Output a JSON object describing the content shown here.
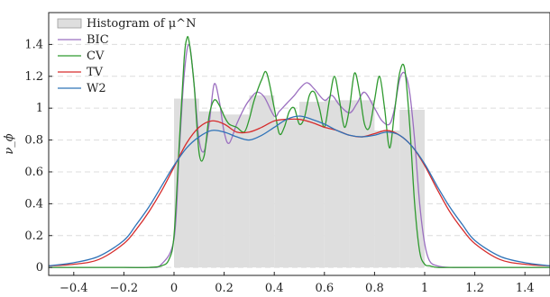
{
  "chart_data": {
    "type": "line",
    "xlabel": "",
    "ylabel": "ν_ϕ",
    "xlim": [
      -0.5,
      1.5
    ],
    "ylim": [
      -0.05,
      1.6
    ],
    "xticks": [
      -0.4,
      -0.2,
      0,
      0.2,
      0.4,
      0.6,
      0.8,
      1,
      1.2,
      1.4
    ],
    "xtick_labels": [
      "−0.4",
      "−0.2",
      "0",
      "0.2",
      "0.4",
      "0.6",
      "0.8",
      "1",
      "1.2",
      "1.4"
    ],
    "yticks": [
      0,
      0.2,
      0.4,
      0.6,
      0.8,
      1,
      1.2,
      1.4
    ],
    "ytick_labels": [
      "0",
      "0.2",
      "0.4",
      "0.6",
      "0.8",
      "1",
      "1.2",
      "1.4"
    ],
    "grid": "horizontal dashed",
    "legend_position": "top-left",
    "histogram": {
      "name": "Histogram of μ^N",
      "color": "#dedede",
      "bins": [
        {
          "x0": 0.0,
          "x1": 0.1,
          "value": 1.06
        },
        {
          "x0": 0.1,
          "x1": 0.2,
          "value": 0.98
        },
        {
          "x0": 0.2,
          "x1": 0.3,
          "value": 0.96
        },
        {
          "x0": 0.3,
          "x1": 0.4,
          "value": 1.08
        },
        {
          "x0": 0.4,
          "x1": 0.5,
          "value": 0.93
        },
        {
          "x0": 0.5,
          "x1": 0.6,
          "value": 1.04
        },
        {
          "x0": 0.6,
          "x1": 0.7,
          "value": 1.05
        },
        {
          "x0": 0.7,
          "x1": 0.8,
          "value": 1.05
        },
        {
          "x0": 0.8,
          "x1": 0.9,
          "value": 0.86
        },
        {
          "x0": 0.9,
          "x1": 1.0,
          "value": 0.99
        }
      ]
    },
    "series": [
      {
        "name": "BIC",
        "color": "#9b6fc0",
        "x": [
          -0.5,
          -0.3,
          -0.2,
          -0.1,
          -0.05,
          0.0,
          0.02,
          0.04,
          0.06,
          0.08,
          0.1,
          0.12,
          0.14,
          0.16,
          0.18,
          0.2,
          0.22,
          0.25,
          0.28,
          0.3,
          0.33,
          0.36,
          0.4,
          0.42,
          0.45,
          0.48,
          0.5,
          0.53,
          0.56,
          0.6,
          0.63,
          0.66,
          0.7,
          0.73,
          0.76,
          0.8,
          0.83,
          0.86,
          0.88,
          0.9,
          0.92,
          0.94,
          0.96,
          0.98,
          1.0,
          1.02,
          1.05,
          1.1,
          1.2,
          1.3,
          1.5
        ],
        "y": [
          0.0,
          0.0,
          0.0,
          0.0,
          0.02,
          0.18,
          0.7,
          1.2,
          1.4,
          1.15,
          0.8,
          0.73,
          0.9,
          1.15,
          1.05,
          0.85,
          0.78,
          0.9,
          1.0,
          1.05,
          1.1,
          1.07,
          0.95,
          0.98,
          1.03,
          1.08,
          1.12,
          1.16,
          1.12,
          1.05,
          1.08,
          1.02,
          0.97,
          1.03,
          1.1,
          1.0,
          0.92,
          0.9,
          1.0,
          1.18,
          1.22,
          1.1,
          0.8,
          0.4,
          0.15,
          0.04,
          0.01,
          0.0,
          0.0,
          0.0,
          0.0
        ]
      },
      {
        "name": "CV",
        "color": "#2f9a2f",
        "x": [
          -0.5,
          -0.3,
          -0.2,
          -0.1,
          -0.05,
          -0.02,
          0.0,
          0.02,
          0.04,
          0.05,
          0.06,
          0.08,
          0.1,
          0.12,
          0.14,
          0.16,
          0.18,
          0.2,
          0.22,
          0.25,
          0.28,
          0.3,
          0.32,
          0.35,
          0.37,
          0.4,
          0.42,
          0.44,
          0.46,
          0.48,
          0.5,
          0.52,
          0.54,
          0.56,
          0.58,
          0.6,
          0.62,
          0.64,
          0.66,
          0.68,
          0.7,
          0.72,
          0.74,
          0.76,
          0.78,
          0.8,
          0.82,
          0.84,
          0.86,
          0.88,
          0.9,
          0.92,
          0.94,
          0.96,
          0.98,
          1.0,
          1.02,
          1.05,
          1.1,
          1.2,
          1.3,
          1.5
        ],
        "y": [
          0.0,
          0.0,
          0.0,
          0.0,
          0.01,
          0.05,
          0.2,
          0.75,
          1.3,
          1.43,
          1.42,
          1.15,
          0.72,
          0.7,
          0.95,
          1.05,
          1.02,
          0.95,
          0.9,
          0.88,
          0.85,
          0.93,
          1.05,
          1.18,
          1.22,
          1.0,
          0.84,
          0.88,
          0.98,
          1.0,
          0.9,
          0.94,
          1.08,
          1.1,
          1.0,
          0.88,
          1.05,
          1.2,
          1.05,
          0.88,
          1.0,
          1.22,
          1.1,
          0.9,
          0.88,
          1.05,
          1.2,
          1.0,
          0.75,
          0.98,
          1.22,
          1.25,
          0.9,
          0.4,
          0.1,
          0.02,
          0.01,
          0.0,
          0.0,
          0.0,
          0.0,
          0.0
        ]
      },
      {
        "name": "TV",
        "color": "#d62c2c",
        "x": [
          -0.5,
          -0.4,
          -0.3,
          -0.2,
          -0.15,
          -0.1,
          -0.05,
          0.0,
          0.05,
          0.1,
          0.15,
          0.2,
          0.25,
          0.3,
          0.35,
          0.4,
          0.45,
          0.5,
          0.55,
          0.6,
          0.65,
          0.7,
          0.75,
          0.8,
          0.85,
          0.9,
          0.95,
          1.0,
          1.05,
          1.1,
          1.15,
          1.2,
          1.3,
          1.4,
          1.5
        ],
        "y": [
          0.01,
          0.02,
          0.05,
          0.15,
          0.24,
          0.35,
          0.48,
          0.63,
          0.78,
          0.88,
          0.92,
          0.9,
          0.85,
          0.85,
          0.88,
          0.92,
          0.93,
          0.93,
          0.91,
          0.88,
          0.86,
          0.83,
          0.82,
          0.84,
          0.86,
          0.83,
          0.76,
          0.64,
          0.49,
          0.35,
          0.24,
          0.15,
          0.05,
          0.02,
          0.01
        ]
      },
      {
        "name": "W2",
        "color": "#2f73b8",
        "x": [
          -0.5,
          -0.4,
          -0.3,
          -0.2,
          -0.15,
          -0.1,
          -0.05,
          0.0,
          0.05,
          0.1,
          0.15,
          0.2,
          0.25,
          0.3,
          0.35,
          0.4,
          0.45,
          0.5,
          0.55,
          0.6,
          0.65,
          0.7,
          0.75,
          0.8,
          0.85,
          0.9,
          0.95,
          1.0,
          1.05,
          1.1,
          1.15,
          1.2,
          1.3,
          1.4,
          1.5
        ],
        "y": [
          0.01,
          0.03,
          0.07,
          0.17,
          0.27,
          0.38,
          0.51,
          0.64,
          0.75,
          0.82,
          0.86,
          0.85,
          0.82,
          0.8,
          0.83,
          0.88,
          0.93,
          0.95,
          0.93,
          0.9,
          0.86,
          0.83,
          0.82,
          0.83,
          0.85,
          0.83,
          0.76,
          0.65,
          0.51,
          0.38,
          0.27,
          0.17,
          0.07,
          0.03,
          0.01
        ]
      }
    ]
  }
}
